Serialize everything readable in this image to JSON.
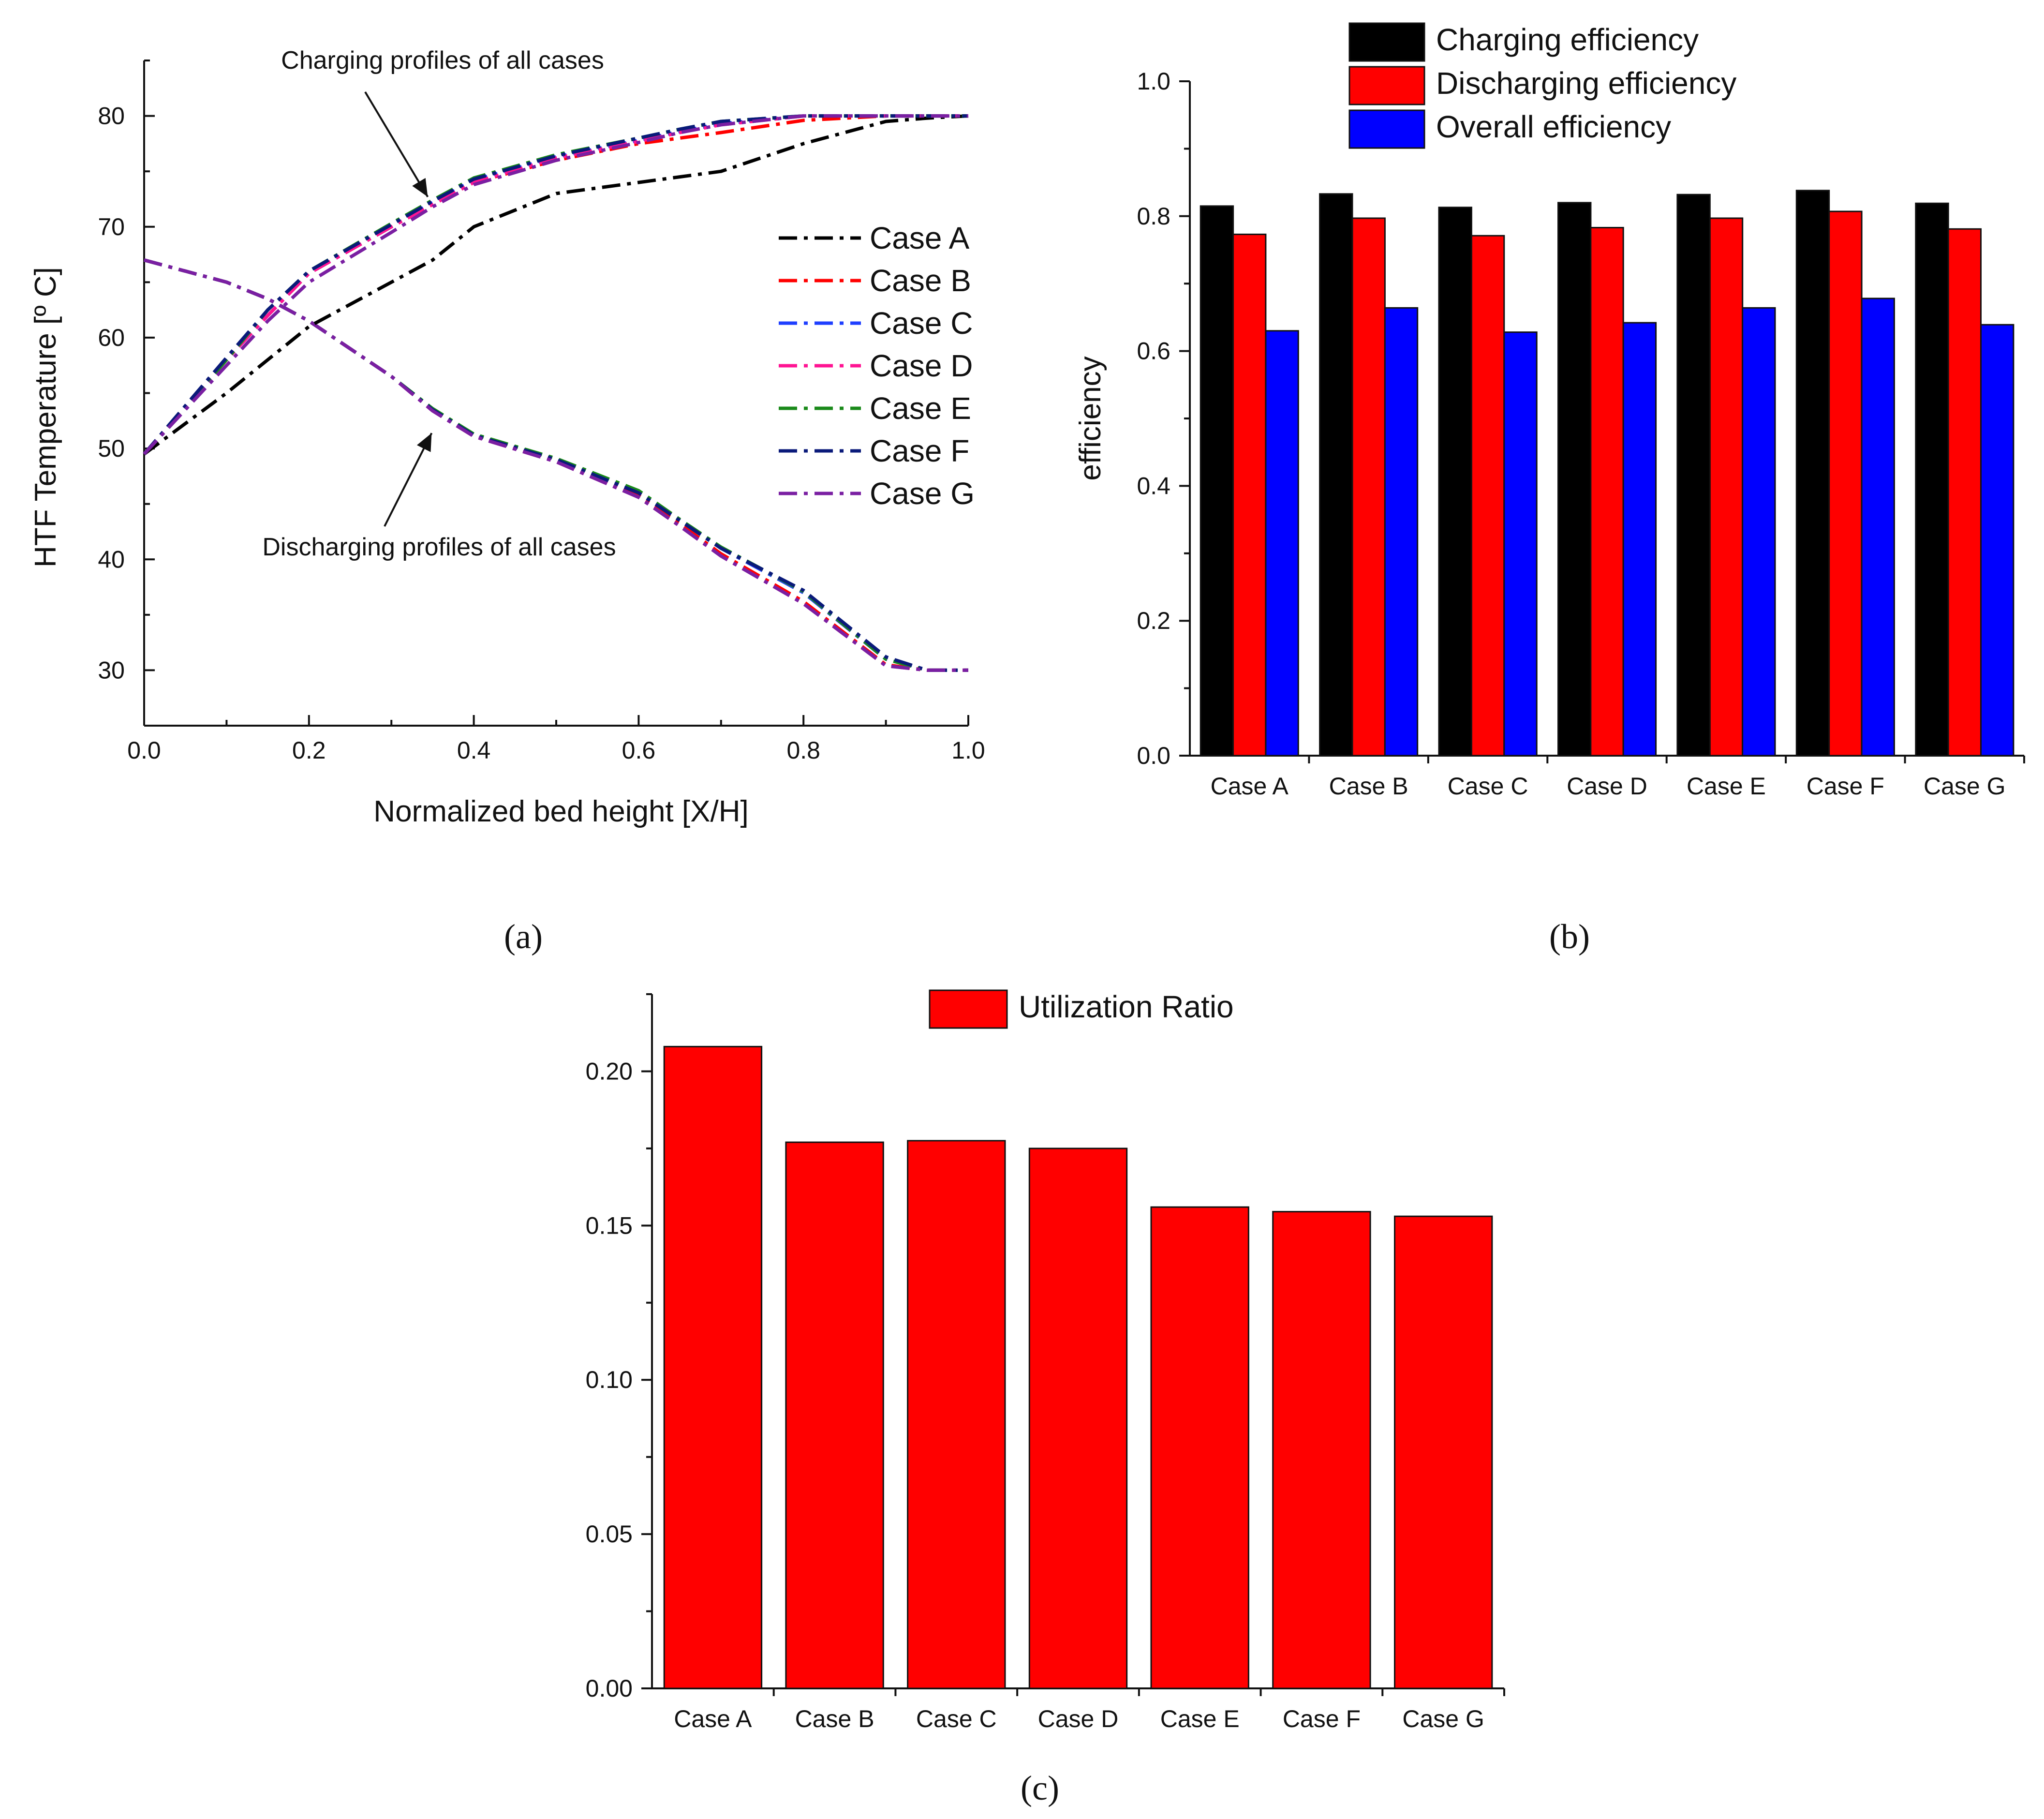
{
  "chart_data": [
    {
      "id": "a",
      "type": "line",
      "panel_label": "(a)",
      "xlabel": "Normalized bed height [X/H]",
      "ylabel": "HTF Temperature [º C]",
      "xlim": [
        0,
        1
      ],
      "ylim": [
        25,
        85
      ],
      "xticks": [
        0.0,
        0.2,
        0.4,
        0.6,
        0.8,
        1.0
      ],
      "yticks": [
        30,
        40,
        50,
        60,
        70,
        80
      ],
      "x": [
        0.0,
        0.1,
        0.15,
        0.2,
        0.3,
        0.35,
        0.4,
        0.5,
        0.6,
        0.65,
        0.7,
        0.8,
        0.9,
        0.95,
        1.0
      ],
      "charging": [
        {
          "name": "Case A",
          "color": "#000000",
          "values": [
            49.5,
            55,
            58,
            61,
            65,
            67,
            70,
            73,
            74,
            74.5,
            75,
            77.5,
            79.5,
            79.8,
            80
          ]
        },
        {
          "name": "Case B",
          "color": "#ff0000",
          "values": [
            49.5,
            58,
            62,
            65.8,
            70,
            72,
            74,
            76,
            77.5,
            78,
            78.5,
            79.6,
            80,
            80,
            80
          ]
        },
        {
          "name": "Case C",
          "color": "#1f3fff",
          "values": [
            49.5,
            58,
            62,
            65.8,
            70,
            72.2,
            74.2,
            76.3,
            77.8,
            78.6,
            79.3,
            80,
            80,
            80,
            80
          ]
        },
        {
          "name": "Case D",
          "color": "#ff1493",
          "values": [
            49.5,
            58,
            62,
            65.8,
            70,
            72,
            74,
            76.2,
            77.7,
            78.5,
            79.2,
            80,
            80,
            80,
            80
          ]
        },
        {
          "name": "Case E",
          "color": "#1a8a1a",
          "values": [
            49.5,
            58,
            62.5,
            66,
            70.3,
            72.4,
            74.4,
            76.5,
            78,
            78.8,
            79.5,
            80,
            80,
            80,
            80
          ]
        },
        {
          "name": "Case F",
          "color": "#0a1a7a",
          "values": [
            49.5,
            58.2,
            62.5,
            66,
            70.2,
            72.3,
            74.3,
            76.4,
            78,
            78.8,
            79.5,
            80,
            80,
            80,
            80
          ]
        },
        {
          "name": "Case G",
          "color": "#7a1fa2",
          "values": [
            49.5,
            57.5,
            61.5,
            65,
            69.5,
            71.8,
            73.8,
            76,
            77.6,
            78.5,
            79.2,
            80,
            80,
            80,
            80
          ]
        }
      ],
      "discharging": [
        {
          "name": "Case A",
          "color": "#000000",
          "values": [
            67,
            65,
            63.5,
            61.5,
            56.5,
            53.5,
            51.2,
            49,
            46,
            43.5,
            41,
            37,
            31,
            30,
            30
          ]
        },
        {
          "name": "Case B",
          "color": "#ff0000",
          "values": [
            67,
            65,
            63.5,
            61.5,
            56.5,
            53.5,
            51.2,
            49,
            45.8,
            43.2,
            40.5,
            36.2,
            30.5,
            30,
            30
          ]
        },
        {
          "name": "Case C",
          "color": "#1f3fff",
          "values": [
            67,
            65,
            63.5,
            61.5,
            56.5,
            53.5,
            51.2,
            49,
            46,
            43.5,
            41,
            37,
            31,
            30,
            30
          ]
        },
        {
          "name": "Case D",
          "color": "#ff1493",
          "values": [
            67,
            65,
            63.5,
            61.5,
            56.5,
            53.4,
            51.1,
            48.8,
            45.6,
            43,
            40.3,
            36,
            30.4,
            30,
            30
          ]
        },
        {
          "name": "Case E",
          "color": "#1a8a1a",
          "values": [
            67,
            65,
            63.5,
            61.5,
            56.5,
            53.6,
            51.3,
            49.1,
            46.2,
            43.6,
            41.1,
            37.1,
            31,
            30,
            30
          ]
        },
        {
          "name": "Case F",
          "color": "#0a1a7a",
          "values": [
            67,
            65,
            63.5,
            61.5,
            56.5,
            53.5,
            51.2,
            49,
            46,
            43.5,
            41,
            37.2,
            31.2,
            30,
            30
          ]
        },
        {
          "name": "Case G",
          "color": "#7a1fa2",
          "values": [
            67,
            65,
            63.5,
            61.5,
            56.5,
            53.4,
            51.1,
            48.8,
            45.6,
            43,
            40.3,
            36,
            30.4,
            30,
            30
          ]
        }
      ],
      "annotations": [
        {
          "text": "Charging profiles of all cases",
          "point_x": 0.35,
          "point_y": 72
        },
        {
          "text": "Discharging profiles of all cases",
          "point_x": 0.35,
          "point_y": 52
        }
      ],
      "legend_position": "center-right"
    },
    {
      "id": "b",
      "type": "bar",
      "panel_label": "(b)",
      "ylabel": "efficiency",
      "xlabel": "",
      "ylim": [
        0,
        1.0
      ],
      "yticks": [
        0.0,
        0.2,
        0.4,
        0.6,
        0.8,
        1.0
      ],
      "categories": [
        "Case A",
        "Case B",
        "Case C",
        "Case D",
        "Case E",
        "Case F",
        "Case G"
      ],
      "series": [
        {
          "name": "Charging efficiency",
          "color": "#000000",
          "values": [
            0.815,
            0.833,
            0.813,
            0.82,
            0.832,
            0.838,
            0.819
          ]
        },
        {
          "name": "Discharging efficiency",
          "color": "#ff0000",
          "values": [
            0.773,
            0.797,
            0.771,
            0.783,
            0.797,
            0.807,
            0.781
          ]
        },
        {
          "name": "Overall efficiency",
          "color": "#0000ff",
          "values": [
            0.63,
            0.664,
            0.628,
            0.642,
            0.664,
            0.678,
            0.639
          ]
        }
      ],
      "legend_position": "top"
    },
    {
      "id": "c",
      "type": "bar",
      "panel_label": "(c)",
      "xlabel": "",
      "ylabel": "",
      "ylim": [
        0,
        0.225
      ],
      "yticks": [
        0.0,
        0.05,
        0.1,
        0.15,
        0.2
      ],
      "categories": [
        "Case A",
        "Case B",
        "Case C",
        "Case D",
        "Case E",
        "Case F",
        "Case G"
      ],
      "series": [
        {
          "name": "Utilization Ratio",
          "color": "#ff0000",
          "values": [
            0.208,
            0.177,
            0.1775,
            0.175,
            0.156,
            0.1545,
            0.153
          ]
        }
      ],
      "legend_position": "top"
    }
  ]
}
